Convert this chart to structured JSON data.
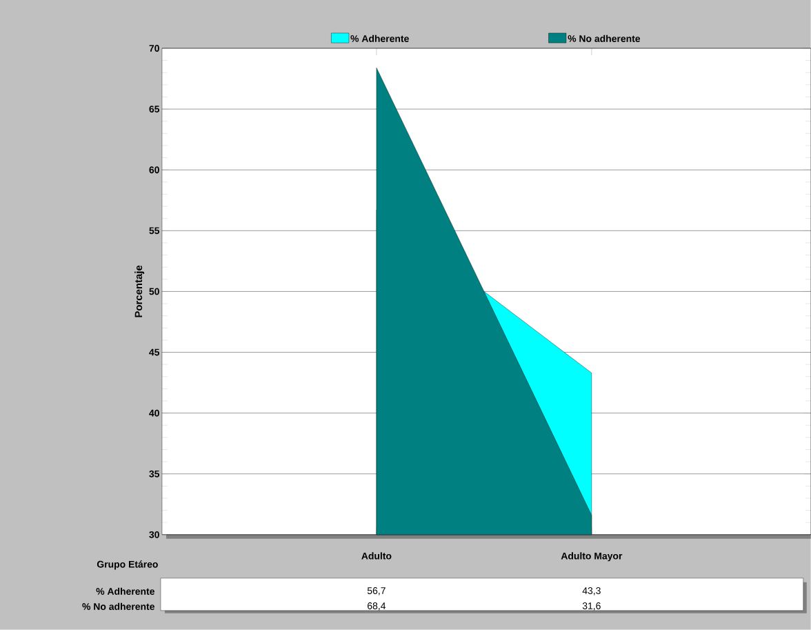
{
  "chart_data": {
    "type": "area",
    "xlabel": "Grupo Etáreo",
    "ylabel": "Porcentaje",
    "categories": [
      "Adulto",
      "Adulto Mayor"
    ],
    "series": [
      {
        "name": "% Adherente",
        "color": "#00ffff",
        "values": [
          56.7,
          43.3
        ],
        "value_labels": [
          "56,7",
          "43,3"
        ]
      },
      {
        "name": "% No adherente",
        "color": "#008080",
        "values": [
          68.4,
          31.6
        ],
        "value_labels": [
          "68,4",
          "31,6"
        ]
      }
    ],
    "ylim": [
      30,
      70
    ],
    "yticks": [
      30,
      35,
      40,
      45,
      50,
      55,
      60,
      65,
      70
    ],
    "grid": "y",
    "legend": "top"
  }
}
